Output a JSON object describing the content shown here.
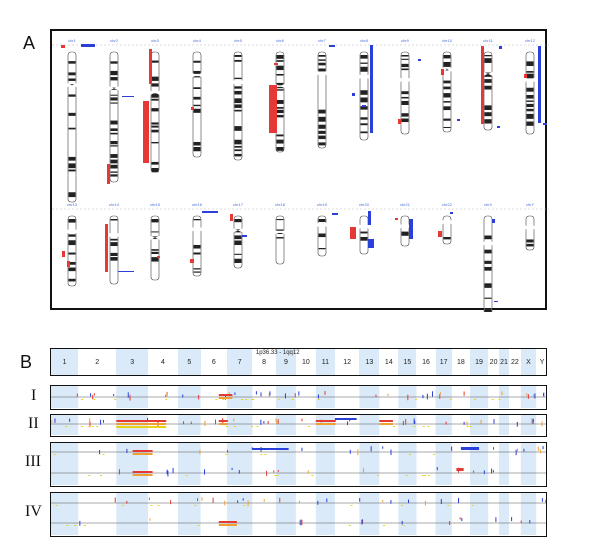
{
  "figure": {
    "panel_a_letter": "A",
    "panel_b_letter": "B",
    "row_labels": [
      "I",
      "II",
      "III",
      "IV"
    ],
    "region_label": "1p36.33 - 1qq12",
    "chromosome_labels": [
      "1",
      "2",
      "3",
      "4",
      "5",
      "6",
      "7",
      "8",
      "9",
      "10",
      "11",
      "12",
      "13",
      "14",
      "15",
      "16",
      "17",
      "18",
      "19",
      "20",
      "21",
      "22",
      "X",
      "Y"
    ]
  },
  "ideogram": {
    "top_row_tags": [
      "chr1",
      "chr2",
      "chr3",
      "chr4",
      "chr5",
      "chr6",
      "chr7",
      "chr8",
      "chr9",
      "chr10",
      "chr11",
      "chr12"
    ],
    "bottom_row_tags": [
      "chr13",
      "chr14",
      "chr15",
      "chr16",
      "chr17",
      "chr18",
      "chr19",
      "chr20",
      "chr21",
      "chr22",
      "chrX",
      "chrY"
    ],
    "colors": {
      "loss": "#e53935",
      "gain": "#2b3fd9",
      "band_dark": "#222222",
      "band_light": "#ffffff"
    }
  },
  "colors": {
    "shade": "#dbeaf8",
    "red": "#e53935",
    "blue": "#2b3fd9",
    "orange": "#f0a030",
    "yellow": "#e8d21a"
  }
}
